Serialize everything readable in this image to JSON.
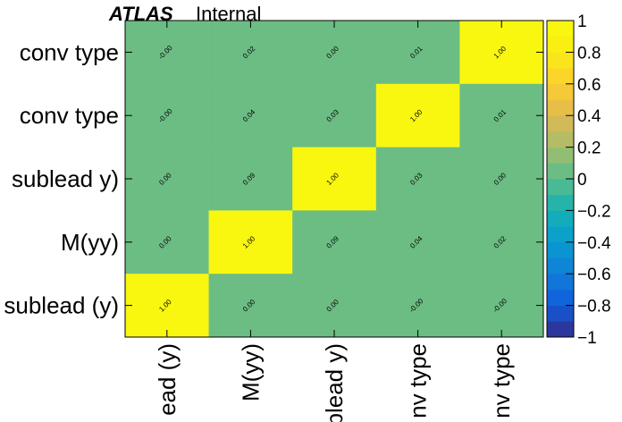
{
  "header": {
    "brand": "ATLAS",
    "status": "Internal"
  },
  "chart_data": {
    "type": "heatmap",
    "title": "",
    "xlabel": "",
    "ylabel": "",
    "x_categories": [
      "sublead (y)",
      "M(yy)",
      "sublead y)",
      "conv type",
      "conv type"
    ],
    "y_categories": [
      "sublead (y)",
      "M(yy)",
      "sublead y)",
      "conv type",
      "conv type"
    ],
    "x_tick_labels_visible": [
      "ead (y)",
      "M(yy)",
      "blead y)",
      "nv type",
      "nv type"
    ],
    "y_tick_labels_visible": [
      "sublead (y)",
      "M(yy)",
      "sublead y)",
      "conv type",
      "conv type"
    ],
    "matrix_rows_top_to_bottom": [
      [
        -0.0,
        0.02,
        0.0,
        0.01,
        1.0
      ],
      [
        -0.0,
        0.04,
        0.03,
        1.0,
        0.01
      ],
      [
        0.0,
        0.09,
        1.0,
        0.03,
        0.0
      ],
      [
        0.0,
        1.0,
        0.09,
        0.04,
        0.02
      ],
      [
        1.0,
        0.0,
        0.0,
        -0.0,
        -0.0
      ]
    ],
    "cell_labels_top_to_bottom": [
      [
        "-0.00",
        "0.02",
        "0.00",
        "0.01",
        "1.00"
      ],
      [
        "-0.00",
        "0.04",
        "0.03",
        "1.00",
        "0.01"
      ],
      [
        "0.00",
        "0.09",
        "1.00",
        "0.03",
        "0.00"
      ],
      [
        "0.00",
        "1.00",
        "0.09",
        "0.04",
        "0.02"
      ],
      [
        "1.00",
        "0.00",
        "0.00",
        "-0.00",
        "-0.00"
      ]
    ],
    "zlim": [
      -1,
      1
    ],
    "colorbar_ticks": [
      "1",
      "0.8",
      "0.6",
      "0.4",
      "0.2",
      "0",
      "−0.2",
      "−0.4",
      "−0.6",
      "−0.8",
      "−1"
    ],
    "colorbar_levels": 20,
    "colormap": "parula",
    "colorbar_placement": "right"
  }
}
